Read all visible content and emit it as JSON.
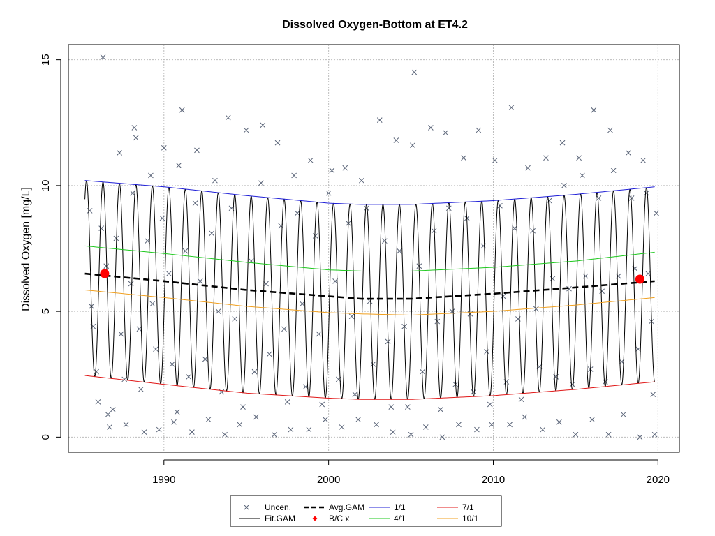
{
  "chart_data": {
    "type": "line",
    "title": "Dissolved Oxygen-Bottom at ET4.2",
    "xlabel": "",
    "ylabel": "Dissolved Oxygen [mg/L]",
    "xlim": [
      1984.2,
      2021.3
    ],
    "ylim": [
      -0.6,
      15.6
    ],
    "x_ticks": [
      1990,
      2000,
      2010,
      2020
    ],
    "x_tick_labels": [
      "1990",
      "2000",
      "2010",
      "2020"
    ],
    "y_ticks": [
      0,
      5,
      10,
      15
    ],
    "y_tick_labels": [
      "0",
      "5",
      "10",
      "15"
    ],
    "grid": true,
    "legend_position": "bottom",
    "legend": [
      {
        "key": "uncen",
        "label": "Uncen.",
        "marker": "x",
        "color": "#5a6478"
      },
      {
        "key": "fit",
        "label": "Fit.GAM",
        "marker": "line",
        "color": "#000000"
      },
      {
        "key": "avg",
        "label": "Avg.GAM",
        "marker": "dashed",
        "color": "#000000"
      },
      {
        "key": "bc",
        "label": "B/C x",
        "marker": "diamond",
        "color": "#ff0000"
      },
      {
        "key": "q1",
        "label": "1/1",
        "marker": "line",
        "color": "#1f1fd6"
      },
      {
        "key": "q4",
        "label": "4/1",
        "marker": "line",
        "color": "#1ec81e"
      },
      {
        "key": "q7",
        "label": "7/1",
        "marker": "line",
        "color": "#e01818"
      },
      {
        "key": "q10",
        "label": "10/1",
        "marker": "line",
        "color": "#f0a020"
      }
    ],
    "series": [
      {
        "key": "q1",
        "name": "1/1",
        "color": "#1f1fd6",
        "x": [
          1985.2,
          1990,
          1995,
          2000,
          2002,
          2005,
          2010,
          2015,
          2019.8
        ],
        "y": [
          10.2,
          9.95,
          9.6,
          9.3,
          9.25,
          9.25,
          9.4,
          9.65,
          9.95
        ]
      },
      {
        "key": "q4",
        "name": "4/1",
        "color": "#1ec81e",
        "x": [
          1985.2,
          1990,
          1995,
          2000,
          2002,
          2005,
          2010,
          2015,
          2019.8
        ],
        "y": [
          7.6,
          7.3,
          6.95,
          6.65,
          6.6,
          6.6,
          6.75,
          7.0,
          7.35
        ]
      },
      {
        "key": "avg",
        "name": "Avg.GAM",
        "color": "#000000",
        "x": [
          1985.2,
          1990,
          1995,
          2000,
          2002,
          2005,
          2010,
          2015,
          2019.8
        ],
        "y": [
          6.5,
          6.2,
          5.85,
          5.6,
          5.5,
          5.5,
          5.7,
          5.95,
          6.2
        ]
      },
      {
        "key": "q10",
        "name": "10/1",
        "color": "#f0a020",
        "x": [
          1985.2,
          1990,
          1995,
          2000,
          2002,
          2005,
          2010,
          2015,
          2019.8
        ],
        "y": [
          5.85,
          5.55,
          5.2,
          4.95,
          4.9,
          4.85,
          5.0,
          5.25,
          5.55
        ]
      },
      {
        "key": "q7",
        "name": "7/1",
        "color": "#e01818",
        "x": [
          1985.2,
          1990,
          1995,
          2000,
          2002,
          2005,
          2010,
          2015,
          2019.8
        ],
        "y": [
          2.45,
          2.1,
          1.75,
          1.55,
          1.5,
          1.5,
          1.65,
          1.9,
          2.2
        ]
      }
    ],
    "fit_gam": {
      "name": "Fit.GAM",
      "color": "#000000",
      "x_start": 1985.2,
      "x_end": 2019.8,
      "period_years": 1,
      "peak_phase_year_fraction": 0.3,
      "upper_envelope": "1/1",
      "lower_envelope": "7/1"
    },
    "bc_points": [
      {
        "x": 1986.4,
        "y": 6.5
      },
      {
        "x": 2018.9,
        "y": 6.28
      }
    ],
    "observations": {
      "name": "Uncen.",
      "marker": "x",
      "points": [
        [
          1985.5,
          9.0
        ],
        [
          1985.6,
          5.2
        ],
        [
          1985.7,
          4.4
        ],
        [
          1985.9,
          2.6
        ],
        [
          1986.0,
          1.4
        ],
        [
          1986.2,
          8.3
        ],
        [
          1986.3,
          15.1
        ],
        [
          1986.5,
          6.8
        ],
        [
          1986.6,
          0.9
        ],
        [
          1986.7,
          0.4
        ],
        [
          1986.9,
          1.1
        ],
        [
          1987.1,
          7.9
        ],
        [
          1987.3,
          11.3
        ],
        [
          1987.4,
          4.1
        ],
        [
          1987.6,
          2.3
        ],
        [
          1987.7,
          0.5
        ],
        [
          1988.0,
          6.1
        ],
        [
          1988.1,
          9.7
        ],
        [
          1988.2,
          12.3
        ],
        [
          1988.3,
          11.9
        ],
        [
          1988.5,
          4.3
        ],
        [
          1988.6,
          1.9
        ],
        [
          1988.8,
          0.2
        ],
        [
          1989.0,
          7.8
        ],
        [
          1989.2,
          10.4
        ],
        [
          1989.3,
          5.3
        ],
        [
          1989.5,
          3.5
        ],
        [
          1989.7,
          0.3
        ],
        [
          1989.9,
          8.7
        ],
        [
          1990.0,
          11.5
        ],
        [
          1990.3,
          6.5
        ],
        [
          1990.5,
          2.9
        ],
        [
          1990.6,
          0.6
        ],
        [
          1990.8,
          1.0
        ],
        [
          1990.9,
          10.8
        ],
        [
          1991.1,
          13.0
        ],
        [
          1991.3,
          7.4
        ],
        [
          1991.5,
          2.4
        ],
        [
          1991.7,
          0.2
        ],
        [
          1991.9,
          9.3
        ],
        [
          1992.0,
          11.4
        ],
        [
          1992.2,
          6.2
        ],
        [
          1992.5,
          3.1
        ],
        [
          1992.7,
          0.7
        ],
        [
          1992.9,
          8.1
        ],
        [
          1993.1,
          10.2
        ],
        [
          1993.3,
          5.0
        ],
        [
          1993.5,
          1.8
        ],
        [
          1993.7,
          0.1
        ],
        [
          1993.9,
          12.7
        ],
        [
          1994.1,
          9.1
        ],
        [
          1994.3,
          4.7
        ],
        [
          1994.6,
          0.5
        ],
        [
          1994.8,
          1.2
        ],
        [
          1995.0,
          12.2
        ],
        [
          1995.3,
          7.0
        ],
        [
          1995.5,
          2.6
        ],
        [
          1995.6,
          0.8
        ],
        [
          1995.9,
          10.1
        ],
        [
          1996.0,
          12.4
        ],
        [
          1996.2,
          6.1
        ],
        [
          1996.4,
          3.3
        ],
        [
          1996.7,
          0.1
        ],
        [
          1996.9,
          11.7
        ],
        [
          1997.1,
          8.4
        ],
        [
          1997.3,
          4.3
        ],
        [
          1997.5,
          1.4
        ],
        [
          1997.7,
          0.3
        ],
        [
          1997.9,
          10.4
        ],
        [
          1998.1,
          8.9
        ],
        [
          1998.4,
          5.3
        ],
        [
          1998.6,
          2.0
        ],
        [
          1998.8,
          0.3
        ],
        [
          1998.9,
          11.0
        ],
        [
          1999.2,
          8.0
        ],
        [
          1999.4,
          4.1
        ],
        [
          1999.6,
          1.3
        ],
        [
          1999.8,
          0.7
        ],
        [
          2000.0,
          9.7
        ],
        [
          2000.2,
          10.6
        ],
        [
          2000.4,
          6.2
        ],
        [
          2000.6,
          2.3
        ],
        [
          2000.8,
          0.4
        ],
        [
          2001.0,
          10.7
        ],
        [
          2001.2,
          8.5
        ],
        [
          2001.4,
          4.8
        ],
        [
          2001.6,
          1.7
        ],
        [
          2001.8,
          0.7
        ],
        [
          2002.0,
          10.2
        ],
        [
          2002.3,
          9.1
        ],
        [
          2002.5,
          5.4
        ],
        [
          2002.7,
          2.9
        ],
        [
          2002.9,
          0.5
        ],
        [
          2003.1,
          12.6
        ],
        [
          2003.4,
          7.8
        ],
        [
          2003.6,
          3.8
        ],
        [
          2003.8,
          1.2
        ],
        [
          2003.9,
          0.2
        ],
        [
          2004.1,
          11.8
        ],
        [
          2004.3,
          7.4
        ],
        [
          2004.6,
          4.4
        ],
        [
          2004.8,
          1.2
        ],
        [
          2005.0,
          0.1
        ],
        [
          2005.1,
          11.6
        ],
        [
          2005.2,
          14.5
        ],
        [
          2005.5,
          6.8
        ],
        [
          2005.7,
          2.6
        ],
        [
          2005.9,
          0.4
        ],
        [
          2006.2,
          12.3
        ],
        [
          2006.4,
          8.2
        ],
        [
          2006.6,
          4.6
        ],
        [
          2006.8,
          1.1
        ],
        [
          2006.9,
          0.0
        ],
        [
          2007.1,
          12.1
        ],
        [
          2007.3,
          9.1
        ],
        [
          2007.5,
          5.0
        ],
        [
          2007.7,
          2.1
        ],
        [
          2007.9,
          0.5
        ],
        [
          2008.2,
          11.1
        ],
        [
          2008.4,
          8.7
        ],
        [
          2008.6,
          4.9
        ],
        [
          2008.8,
          1.8
        ],
        [
          2009.0,
          0.3
        ],
        [
          2009.1,
          12.2
        ],
        [
          2009.4,
          7.6
        ],
        [
          2009.6,
          3.4
        ],
        [
          2009.8,
          1.3
        ],
        [
          2009.9,
          0.5
        ],
        [
          2010.1,
          11.0
        ],
        [
          2010.4,
          9.2
        ],
        [
          2010.6,
          5.6
        ],
        [
          2010.8,
          2.2
        ],
        [
          2011.0,
          0.5
        ],
        [
          2011.1,
          13.1
        ],
        [
          2011.3,
          8.3
        ],
        [
          2011.5,
          4.7
        ],
        [
          2011.7,
          1.5
        ],
        [
          2011.9,
          0.8
        ],
        [
          2012.1,
          10.7
        ],
        [
          2012.4,
          8.2
        ],
        [
          2012.6,
          5.1
        ],
        [
          2012.8,
          2.8
        ],
        [
          2013.0,
          0.3
        ],
        [
          2013.2,
          11.1
        ],
        [
          2013.4,
          9.4
        ],
        [
          2013.6,
          6.3
        ],
        [
          2013.8,
          2.4
        ],
        [
          2014.0,
          0.6
        ],
        [
          2014.2,
          11.7
        ],
        [
          2014.3,
          10.0
        ],
        [
          2014.6,
          5.9
        ],
        [
          2014.8,
          2.1
        ],
        [
          2015.0,
          0.1
        ],
        [
          2015.2,
          11.1
        ],
        [
          2015.4,
          10.4
        ],
        [
          2015.6,
          6.4
        ],
        [
          2015.9,
          2.7
        ],
        [
          2016.0,
          0.7
        ],
        [
          2016.1,
          13.0
        ],
        [
          2016.4,
          9.5
        ],
        [
          2016.6,
          5.8
        ],
        [
          2016.8,
          2.2
        ],
        [
          2017.0,
          0.1
        ],
        [
          2017.1,
          12.2
        ],
        [
          2017.3,
          10.6
        ],
        [
          2017.6,
          6.4
        ],
        [
          2017.8,
          3.0
        ],
        [
          2017.9,
          0.9
        ],
        [
          2018.2,
          11.3
        ],
        [
          2018.4,
          9.5
        ],
        [
          2018.6,
          6.7
        ],
        [
          2018.8,
          3.5
        ],
        [
          2018.9,
          0.0
        ],
        [
          2019.1,
          11.0
        ],
        [
          2019.3,
          9.7
        ],
        [
          2019.4,
          6.5
        ],
        [
          2019.6,
          4.6
        ],
        [
          2019.7,
          1.7
        ],
        [
          2019.8,
          0.1
        ],
        [
          2019.9,
          8.9
        ]
      ]
    }
  }
}
